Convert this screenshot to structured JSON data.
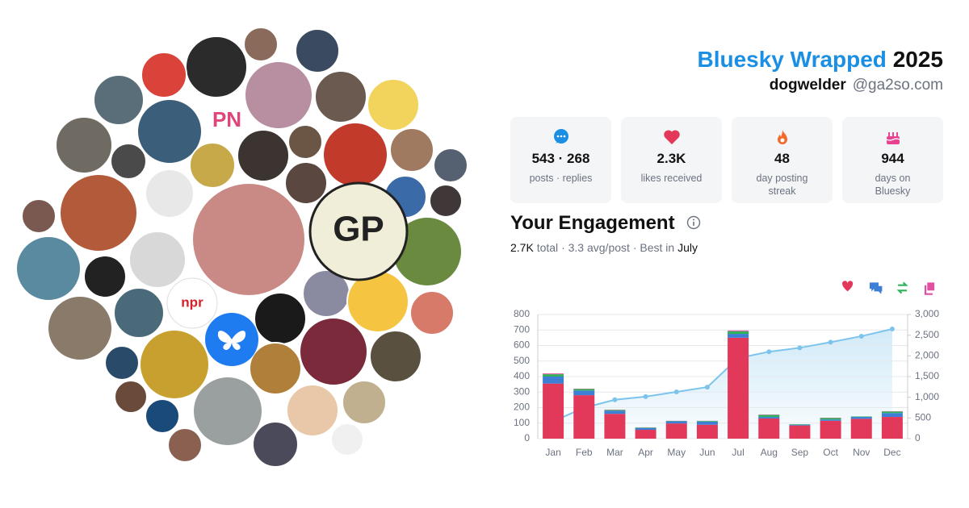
{
  "header": {
    "title": "Bluesky Wrapped",
    "year": "2025",
    "username": "dogwelder",
    "handle": "@ga2so.com"
  },
  "stats": [
    {
      "value": "543 · 268",
      "label": "posts · replies"
    },
    {
      "value": "2.3K",
      "label": "likes received"
    },
    {
      "value": "48",
      "label": "day posting streak"
    },
    {
      "value": "944",
      "label": "days on Bluesky"
    }
  ],
  "engagement": {
    "title": "Your Engagement",
    "total": "2.7K",
    "total_label": "total",
    "separator": "·",
    "avg": "3.3",
    "avg_label": "avg/post",
    "best_label": "Best in",
    "best": "July"
  },
  "collage_labels": [
    "PN",
    "npr",
    "GP"
  ],
  "chart_data": {
    "type": "bar",
    "stacked": true,
    "categories": [
      "Jan",
      "Feb",
      "Mar",
      "Apr",
      "May",
      "Jun",
      "Jul",
      "Aug",
      "Sep",
      "Oct",
      "Nov",
      "Dec"
    ],
    "series": [
      {
        "color": "#e2395a",
        "values": [
          355,
          280,
          160,
          57,
          98,
          90,
          650,
          130,
          85,
          115,
          128,
          140
        ]
      },
      {
        "color": "#3e7fd6",
        "values": [
          45,
          30,
          20,
          12,
          14,
          20,
          25,
          10,
          5,
          8,
          12,
          25
        ]
      },
      {
        "color": "#2fb35a",
        "values": [
          15,
          10,
          5,
          3,
          2,
          4,
          17,
          13,
          3,
          10,
          3,
          10
        ]
      },
      {
        "color": "#e34fa0",
        "values": [
          5,
          2,
          2,
          1,
          1,
          1,
          5,
          2,
          0,
          2,
          0,
          2
        ]
      },
      {
        "type": "line",
        "axis": "y2",
        "color": "#7cc4ec",
        "values": [
          420,
          745,
          940,
          1015,
          1130,
          1245,
          1945,
          2100,
          2195,
          2330,
          2475,
          2650
        ]
      }
    ],
    "ylim": [
      0,
      800
    ],
    "yticks": [
      0,
      100,
      200,
      300,
      400,
      500,
      600,
      700,
      800
    ],
    "y2lim": [
      0,
      3000
    ],
    "y2ticks": [
      0,
      500,
      {
        "value": 1000,
        "label": "1,000"
      },
      {
        "value": 1500,
        "label": "1,500"
      },
      {
        "value": 2000,
        "label": "2,000"
      },
      {
        "value": 2500,
        "label": "2,500"
      },
      {
        "value": 3000,
        "label": "3,000"
      }
    ],
    "grid": true
  }
}
